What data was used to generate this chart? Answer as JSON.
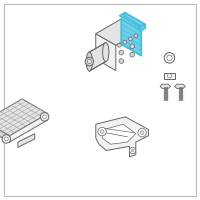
{
  "bg_color": "#ffffff",
  "border_color": "#bbbbbb",
  "highlight_color": "#3bbde0",
  "highlight_fill": "#6dcee8",
  "line_color": "#999999",
  "line_width": 0.7,
  "dark_line": "#666666",
  "face_light": "#f2f2f2",
  "face_mid": "#e4e4e4",
  "face_dark": "#d4d4d4"
}
